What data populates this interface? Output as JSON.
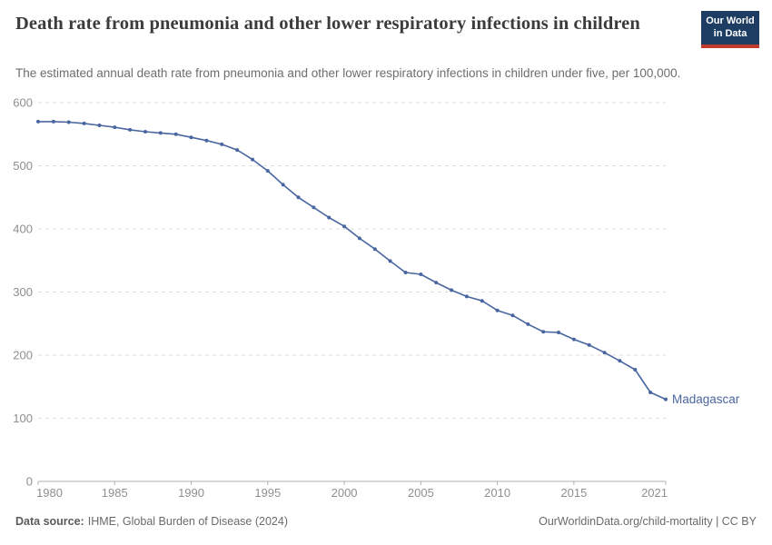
{
  "header": {
    "title": "Death rate from pneumonia and other lower respiratory infections in children",
    "subtitle": "The estimated annual death rate from pneumonia and other lower respiratory infections in children under five, per 100,000.",
    "logo": {
      "line1": "Our World",
      "line2": "in Data"
    }
  },
  "chart_data": {
    "type": "line",
    "title": "Death rate from pneumonia and other lower respiratory infections in children",
    "xlabel": "",
    "ylabel": "",
    "xlim": [
      1980,
      2021
    ],
    "ylim": [
      0,
      600
    ],
    "x_ticks": [
      1980,
      1985,
      1990,
      1995,
      2000,
      2005,
      2010,
      2015,
      2021
    ],
    "y_ticks": [
      0,
      100,
      200,
      300,
      400,
      500,
      600
    ],
    "grid": "horizontal-dashed",
    "legend_position": "end-of-line-label",
    "series": [
      {
        "name": "Madagascar",
        "color": "#4a66a0",
        "x": [
          1980,
          1981,
          1982,
          1983,
          1984,
          1985,
          1986,
          1987,
          1988,
          1989,
          1990,
          1991,
          1992,
          1993,
          1994,
          1995,
          1996,
          1997,
          1998,
          1999,
          2000,
          2001,
          2002,
          2003,
          2004,
          2005,
          2006,
          2007,
          2008,
          2009,
          2010,
          2011,
          2012,
          2013,
          2014,
          2015,
          2016,
          2017,
          2018,
          2019,
          2020,
          2021
        ],
        "values": [
          570,
          570,
          569,
          567,
          564,
          561,
          557,
          554,
          552,
          550,
          545,
          540,
          534,
          525,
          510,
          492,
          470,
          450,
          434,
          418,
          404,
          385,
          368,
          349,
          331,
          328,
          315,
          303,
          293,
          286,
          271,
          263,
          249,
          237,
          236,
          225,
          216,
          204,
          191,
          177,
          141,
          130
        ]
      }
    ]
  },
  "axis_style": {
    "tick_color": "#8f8f8f",
    "grid_color": "#dddddd",
    "axis_line_color": "#b0b0b0"
  },
  "footer": {
    "source_label": "Data source:",
    "source_text": "IHME, Global Burden of Disease (2024)",
    "credit": "OurWorldinData.org/child-mortality | CC BY"
  }
}
